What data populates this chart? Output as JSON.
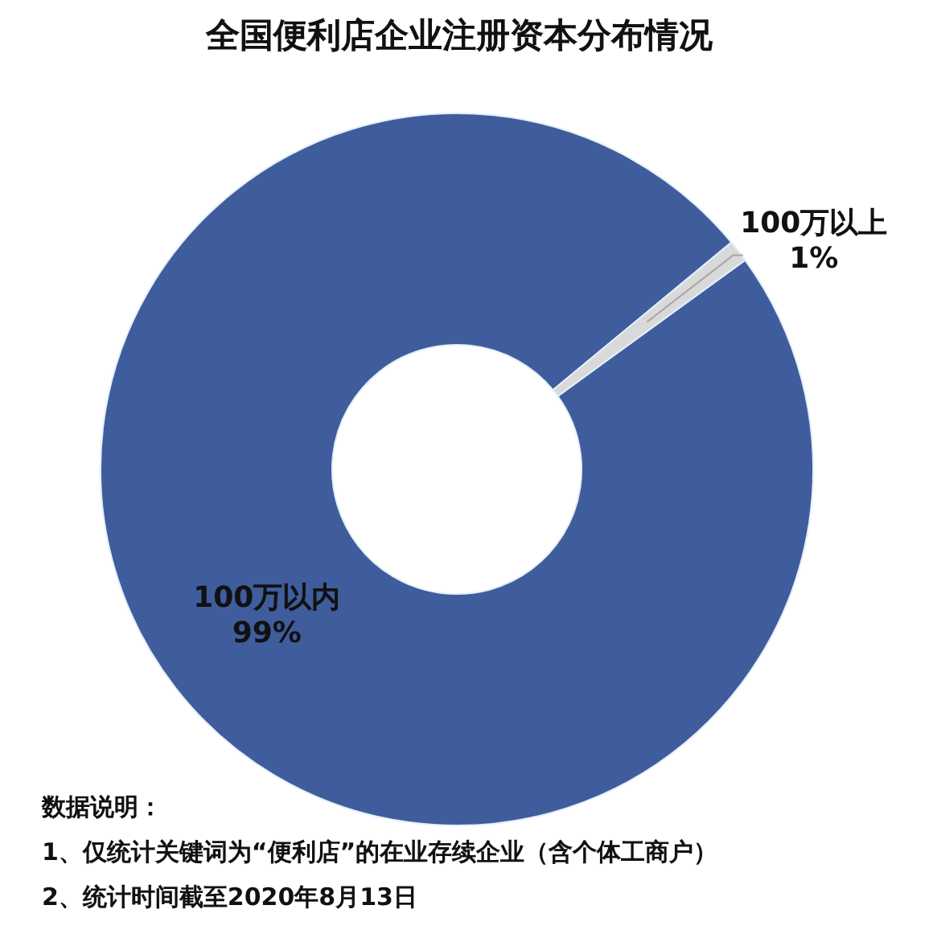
{
  "chart_data": {
    "type": "donut",
    "title": "全国便利店企业注册资本分布情况",
    "categories": [
      "100万以内",
      "100万以上"
    ],
    "values": [
      99,
      1
    ],
    "colors": [
      "#3f5c9c",
      "#d9d9d9"
    ],
    "value_labels": [
      "99%",
      "1%"
    ],
    "legend": false,
    "annotations": [
      "数据说明：",
      "1、仅统计关键词为“便利店”的在业存续企业（含个体工商户）",
      "2、统计时间截至2020年8月13日"
    ]
  }
}
